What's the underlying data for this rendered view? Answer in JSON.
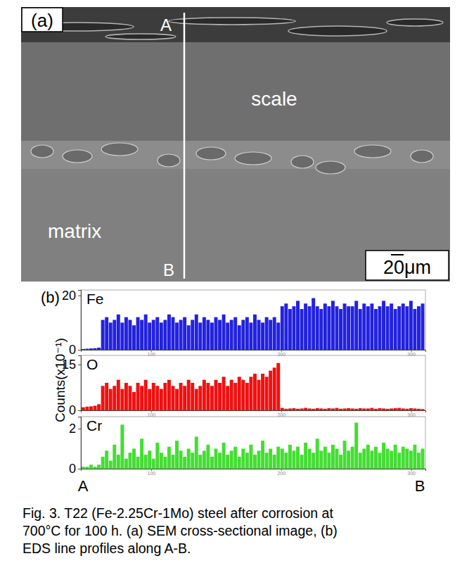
{
  "image_panel": {
    "label": "(a)",
    "line_start": "A",
    "line_end": "B",
    "scale_label": "scale",
    "matrix_label": "matrix",
    "scale_bar": "20μm"
  },
  "profiles_panel": {
    "label": "(b)",
    "y_label": "Counts(x10⁻¹)",
    "x_start": "A",
    "x_end": "B"
  },
  "chart_data": [
    {
      "type": "bar",
      "title": "Fe",
      "color": "#2222dd",
      "x": [
        48,
        51,
        54,
        57,
        60,
        63,
        66,
        69,
        72,
        75,
        78,
        81,
        84,
        87,
        90,
        93,
        96,
        99,
        102,
        105,
        108,
        111,
        114,
        117,
        120,
        123,
        126,
        129,
        132,
        135,
        138,
        141,
        144,
        147,
        150,
        153,
        156,
        159,
        162,
        165,
        168,
        171,
        174,
        177,
        180,
        183,
        186,
        189,
        192,
        195,
        198,
        201,
        204,
        207,
        210,
        213,
        216,
        219,
        222,
        225,
        228,
        231,
        234,
        237,
        240,
        243,
        246,
        249,
        252,
        255,
        258,
        261,
        264,
        267,
        270,
        273,
        276,
        279,
        282,
        285,
        288,
        291,
        294,
        297,
        300,
        303,
        306,
        309
      ],
      "values": [
        0.3,
        0.4,
        0.5,
        0.6,
        0.8,
        11,
        12,
        10,
        11,
        13,
        10,
        12,
        11,
        9,
        12,
        11,
        13,
        10,
        11,
        12,
        10,
        11,
        13,
        12,
        10,
        11,
        12,
        9,
        11,
        13,
        10,
        12,
        11,
        10,
        12,
        11,
        13,
        10,
        11,
        12,
        9,
        11,
        12,
        10,
        13,
        11,
        10,
        12,
        11,
        12,
        10,
        16,
        17,
        15,
        16,
        18,
        15,
        17,
        16,
        19,
        16,
        15,
        17,
        16,
        18,
        16,
        15,
        17,
        16,
        16,
        18,
        15,
        17,
        16,
        17,
        15,
        16,
        18,
        16,
        17,
        15,
        16,
        17,
        16,
        18,
        15,
        16,
        17
      ],
      "xlim": [
        46,
        311
      ],
      "xticks": [
        100,
        200,
        300
      ],
      "ylim": [
        0,
        22
      ],
      "yticks": [
        0,
        20
      ]
    },
    {
      "type": "bar",
      "title": "O",
      "color": "#ee1111",
      "x": [
        48,
        51,
        54,
        57,
        60,
        63,
        66,
        69,
        72,
        75,
        78,
        81,
        84,
        87,
        90,
        93,
        96,
        99,
        102,
        105,
        108,
        111,
        114,
        117,
        120,
        123,
        126,
        129,
        132,
        135,
        138,
        141,
        144,
        147,
        150,
        153,
        156,
        159,
        162,
        165,
        168,
        171,
        174,
        177,
        180,
        183,
        186,
        189,
        192,
        195,
        198,
        201,
        204,
        207,
        210,
        213,
        216,
        219,
        222,
        225,
        228,
        231,
        234,
        237,
        240,
        243,
        246,
        249,
        252,
        255,
        258,
        261,
        264,
        267,
        270,
        273,
        276,
        279,
        282,
        285,
        288,
        291,
        294,
        297,
        300,
        303,
        306,
        309
      ],
      "values": [
        1,
        1.2,
        1.3,
        1.5,
        2,
        8,
        9,
        7,
        8,
        10,
        7,
        9,
        8,
        6,
        9,
        8,
        10,
        7,
        9,
        8,
        7,
        9,
        10,
        8,
        7,
        9,
        8,
        10,
        9,
        7,
        8,
        10,
        9,
        8,
        10,
        9,
        11,
        8,
        10,
        9,
        11,
        10,
        9,
        11,
        12,
        10,
        12,
        11,
        13,
        14,
        15.5,
        0.8,
        0.5,
        0.6,
        0.7,
        0.5,
        0.6,
        0.8,
        0.6,
        0.5,
        0.7,
        0.6,
        0.5,
        0.7,
        0.6,
        0.8,
        0.5,
        0.6,
        0.7,
        0.6,
        0.5,
        0.7,
        0.6,
        0.6,
        0.8,
        0.5,
        0.7,
        0.6,
        0.5,
        0.6,
        0.7,
        0.8,
        0.6,
        0.5,
        0.7,
        0.6,
        0.5,
        0.4
      ],
      "xlim": [
        46,
        311
      ],
      "xticks": [
        100,
        200,
        300
      ],
      "ylim": [
        0,
        18
      ],
      "yticks": [
        0,
        15
      ]
    },
    {
      "type": "bar",
      "title": "Cr",
      "color": "#44dd33",
      "x": [
        48,
        51,
        54,
        57,
        60,
        63,
        66,
        69,
        72,
        75,
        78,
        81,
        84,
        87,
        90,
        93,
        96,
        99,
        102,
        105,
        108,
        111,
        114,
        117,
        120,
        123,
        126,
        129,
        132,
        135,
        138,
        141,
        144,
        147,
        150,
        153,
        156,
        159,
        162,
        165,
        168,
        171,
        174,
        177,
        180,
        183,
        186,
        189,
        192,
        195,
        198,
        201,
        204,
        207,
        210,
        213,
        216,
        219,
        222,
        225,
        228,
        231,
        234,
        237,
        240,
        243,
        246,
        249,
        252,
        255,
        258,
        261,
        264,
        267,
        270,
        273,
        276,
        279,
        282,
        285,
        288,
        291,
        294,
        297,
        300,
        303,
        306,
        309
      ],
      "values": [
        0.1,
        0.1,
        0.2,
        0.1,
        0.2,
        0.6,
        0.9,
        0.4,
        1.2,
        0.7,
        2.2,
        0.5,
        0.8,
        1.0,
        0.6,
        1.5,
        0.7,
        0.9,
        0.5,
        1.3,
        0.8,
        0.6,
        1.1,
        0.7,
        1.4,
        0.9,
        0.6,
        1.0,
        0.8,
        1.6,
        0.7,
        0.9,
        1.2,
        0.6,
        1.0,
        0.8,
        1.3,
        0.7,
        0.9,
        1.1,
        0.6,
        1.0,
        0.8,
        1.2,
        0.7,
        0.9,
        1.4,
        0.8,
        1.0,
        0.7,
        1.1,
        1.0,
        0.8,
        1.2,
        0.9,
        1.1,
        0.7,
        1.3,
        1.0,
        0.8,
        1.5,
        0.9,
        1.1,
        0.8,
        1.2,
        1.0,
        0.7,
        1.4,
        0.9,
        1.1,
        2.3,
        0.8,
        1.0,
        1.2,
        0.9,
        1.1,
        0.8,
        1.3,
        1.0,
        0.9,
        1.2,
        0.8,
        1.1,
        1.0,
        0.9,
        1.2,
        0.8,
        1.0
      ],
      "xlim": [
        46,
        311
      ],
      "xticks": [
        100,
        200,
        300
      ],
      "ylim": [
        0,
        2.6
      ],
      "yticks": [
        0,
        2
      ]
    }
  ],
  "caption": [
    "Fig. 3. T22 (Fe-2.25Cr-1Mo) steel after corrosion at",
    "700°C for 100 h. (a) SEM cross-sectional image, (b)",
    "EDS line profiles along A-B."
  ]
}
